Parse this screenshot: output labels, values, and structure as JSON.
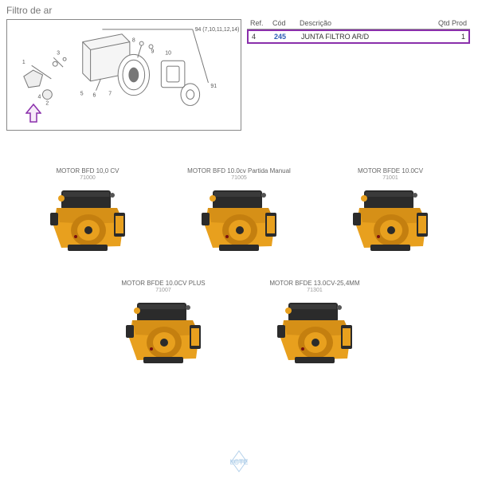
{
  "page": {
    "title": "Filtro de ar"
  },
  "diagram": {
    "callout_label": "94 (7,10,11,12,14)",
    "part_numbers": [
      "1",
      "2",
      "3",
      "4",
      "5",
      "6",
      "7",
      "8",
      "9",
      "10",
      "91"
    ]
  },
  "parts_table": {
    "headers": {
      "ref": "Ref.",
      "cod": "Cód",
      "desc": "Descrição",
      "qtd": "Qtd Prod"
    },
    "row": {
      "ref": "4",
      "cod": "245",
      "desc": "JUNTA FILTRO AR/D",
      "qtd": "1"
    },
    "highlight_border_color": "#8a2fab"
  },
  "products": [
    {
      "title": "MOTOR BFD 10,0 CV",
      "code": "71000"
    },
    {
      "title": "MOTOR BFD 10.0cv Partida Manual",
      "code": "71005"
    },
    {
      "title": "MOTOR BFDE  10.0CV",
      "code": "71001"
    },
    {
      "title": "MOTOR BFDE  10.0CV PLUS",
      "code": "71007"
    },
    {
      "title": "MOTOR BFDE  13.0CV-25,4MM",
      "code": "71301"
    }
  ],
  "colors": {
    "engine_yellow": "#e8a01e",
    "engine_dark": "#2b2b2b",
    "engine_shadow": "#c47f0f",
    "arrow_purple": "#8a2fab",
    "watermark_blue": "#6aa3d6",
    "diagram_stroke": "#777"
  },
  "watermark": {
    "text": "LCTE"
  }
}
